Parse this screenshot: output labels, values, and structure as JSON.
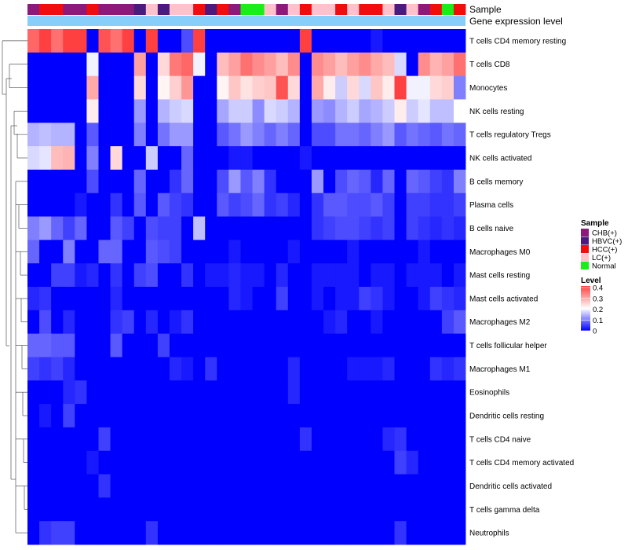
{
  "chart_data": {
    "type": "heatmap",
    "annotation_rows": [
      "Sample",
      "Gene expression level"
    ],
    "rows": [
      "T cells CD4 memory resting",
      "T cells CD8",
      "Monocytes",
      "NK cells resting",
      "T cells regulatory  Tregs",
      "NK cells activated",
      "B cells memory",
      "Plasma cells",
      "B cells naive",
      "Macrophages M0",
      "Mast cells resting",
      "Mast cells activated",
      "Macrophages M2",
      "T cells follicular helper",
      "Macrophages M1",
      "Eosinophils",
      "Dendritic cells resting",
      "T cells CD4 naive",
      "T cells CD4 memory activated",
      "Dendritic cells activated",
      "T cells gamma delta",
      "Neutrophils"
    ],
    "sample_groups": [
      "CHB(+)",
      "HCC(+)",
      "HCC(+)",
      "CHB(+)",
      "CHB(+)",
      "HCC(+)",
      "CHB(+)",
      "CHB(+)",
      "CHB(+)",
      "HBVC(+)",
      "LC(+)",
      "HBVC(+)",
      "LC(+)",
      "LC(+)",
      "HCC(+)",
      "HBVC(+)",
      "HCC(+)",
      "CHB(+)",
      "Normal",
      "Normal",
      "LC(+)",
      "CHB(+)",
      "LC(+)",
      "HCC(+)",
      "LC(+)",
      "LC(+)",
      "HCC(+)",
      "LC(+)",
      "HCC(+)",
      "HCC(+)",
      "LC(+)",
      "HBVC(+)",
      "LC(+)",
      "CHB(+)",
      "HCC(+)",
      "Normal",
      "HCC(+)"
    ],
    "values": [
      [
        0.36,
        0.4,
        0.35,
        0.4,
        0.4,
        0.0,
        0.38,
        0.35,
        0.4,
        0.0,
        0.4,
        0.0,
        0.0,
        0.06,
        0.4,
        0.0,
        0.0,
        0.0,
        0.0,
        0.0,
        0.0,
        0.0,
        0.0,
        0.4,
        0.0,
        0.0,
        0.0,
        0.0,
        0.0,
        0.02,
        0.0,
        0.0,
        0.0,
        0.0,
        0.0,
        0.0,
        0.0
      ],
      [
        0.0,
        0.0,
        0.0,
        0.0,
        0.0,
        0.19,
        0.0,
        0.0,
        0.0,
        0.3,
        0.0,
        0.24,
        0.34,
        0.36,
        0.19,
        0.0,
        0.27,
        0.3,
        0.35,
        0.32,
        0.3,
        0.27,
        0.32,
        0.0,
        0.32,
        0.3,
        0.27,
        0.3,
        0.32,
        0.29,
        0.27,
        0.17,
        0.0,
        0.32,
        0.28,
        0.3,
        0.35
      ],
      [
        0.0,
        0.0,
        0.0,
        0.0,
        0.0,
        0.29,
        0.0,
        0.0,
        0.0,
        0.24,
        0.0,
        0.21,
        0.25,
        0.31,
        0.0,
        0.0,
        0.21,
        0.26,
        0.23,
        0.25,
        0.26,
        0.38,
        0.24,
        0.0,
        0.29,
        0.22,
        0.16,
        0.24,
        0.17,
        0.26,
        0.22,
        0.4,
        0.19,
        0.19,
        0.24,
        0.25,
        0.1
      ],
      [
        0.0,
        0.0,
        0.0,
        0.0,
        0.0,
        0.22,
        0.0,
        0.0,
        0.0,
        0.12,
        0.0,
        0.14,
        0.16,
        0.17,
        0.0,
        0.0,
        0.13,
        0.16,
        0.16,
        0.11,
        0.17,
        0.16,
        0.14,
        0.0,
        0.12,
        0.11,
        0.14,
        0.16,
        0.13,
        0.14,
        0.16,
        0.22,
        0.16,
        0.18,
        0.15,
        0.15,
        0.2
      ],
      [
        0.14,
        0.15,
        0.14,
        0.14,
        0.0,
        0.07,
        0.0,
        0.0,
        0.0,
        0.1,
        0.0,
        0.09,
        0.12,
        0.12,
        0.0,
        0.0,
        0.07,
        0.09,
        0.12,
        0.1,
        0.08,
        0.1,
        0.08,
        0.0,
        0.06,
        0.06,
        0.09,
        0.09,
        0.08,
        0.1,
        0.12,
        0.07,
        0.09,
        0.08,
        0.07,
        0.09,
        0.08
      ],
      [
        0.17,
        0.18,
        0.27,
        0.28,
        0.0,
        0.1,
        0.0,
        0.24,
        0.0,
        0.0,
        0.16,
        0.0,
        0.0,
        0.08,
        0.0,
        0.0,
        0.0,
        0.02,
        0.02,
        0.0,
        0.0,
        0.0,
        0.0,
        0.02,
        0.0,
        0.0,
        0.0,
        0.0,
        0.0,
        0.0,
        0.0,
        0.0,
        0.0,
        0.0,
        0.0,
        0.0,
        0.0
      ],
      [
        0.0,
        0.0,
        0.0,
        0.0,
        0.0,
        0.06,
        0.0,
        0.0,
        0.0,
        0.08,
        0.0,
        0.0,
        0.04,
        0.08,
        0.0,
        0.0,
        0.06,
        0.12,
        0.07,
        0.1,
        0.04,
        0.0,
        0.0,
        0.0,
        0.12,
        0.0,
        0.06,
        0.08,
        0.07,
        0.03,
        0.08,
        0.0,
        0.08,
        0.07,
        0.05,
        0.04,
        0.1
      ],
      [
        0.0,
        0.0,
        0.0,
        0.0,
        0.02,
        0.0,
        0.0,
        0.04,
        0.0,
        0.07,
        0.0,
        0.07,
        0.05,
        0.04,
        0.0,
        0.0,
        0.07,
        0.05,
        0.06,
        0.08,
        0.04,
        0.05,
        0.03,
        0.0,
        0.04,
        0.07,
        0.07,
        0.06,
        0.06,
        0.07,
        0.05,
        0.0,
        0.05,
        0.05,
        0.04,
        0.04,
        0.05
      ],
      [
        0.1,
        0.12,
        0.08,
        0.05,
        0.08,
        0.0,
        0.0,
        0.07,
        0.05,
        0.0,
        0.06,
        0.05,
        0.05,
        0.0,
        0.15,
        0.0,
        0.0,
        0.0,
        0.0,
        0.0,
        0.0,
        0.0,
        0.0,
        0.0,
        0.04,
        0.05,
        0.06,
        0.06,
        0.05,
        0.04,
        0.05,
        0.0,
        0.05,
        0.04,
        0.03,
        0.04,
        0.03
      ],
      [
        0.08,
        0.0,
        0.0,
        0.1,
        0.0,
        0.0,
        0.08,
        0.08,
        0.0,
        0.0,
        0.07,
        0.06,
        0.05,
        0.0,
        0.0,
        0.0,
        0.0,
        0.02,
        0.0,
        0.0,
        0.0,
        0.0,
        0.02,
        0.0,
        0.0,
        0.0,
        0.0,
        0.02,
        0.0,
        0.0,
        0.0,
        0.0,
        0.0,
        0.02,
        0.0,
        0.0,
        0.0
      ],
      [
        0.0,
        0.0,
        0.05,
        0.05,
        0.02,
        0.03,
        0.0,
        0.04,
        0.0,
        0.05,
        0.06,
        0.0,
        0.0,
        0.04,
        0.0,
        0.02,
        0.02,
        0.03,
        0.02,
        0.02,
        0.0,
        0.03,
        0.0,
        0.0,
        0.02,
        0.02,
        0.02,
        0.02,
        0.0,
        0.02,
        0.02,
        0.0,
        0.02,
        0.02,
        0.02,
        0.0,
        0.02
      ],
      [
        0.03,
        0.04,
        0.0,
        0.0,
        0.0,
        0.0,
        0.0,
        0.03,
        0.0,
        0.0,
        0.0,
        0.0,
        0.0,
        0.0,
        0.0,
        0.0,
        0.0,
        0.03,
        0.02,
        0.0,
        0.0,
        0.05,
        0.0,
        0.0,
        0.02,
        0.0,
        0.02,
        0.02,
        0.05,
        0.04,
        0.02,
        0.0,
        0.0,
        0.02,
        0.05,
        0.04,
        0.03
      ],
      [
        0.0,
        0.06,
        0.0,
        0.03,
        0.0,
        0.0,
        0.0,
        0.04,
        0.05,
        0.0,
        0.03,
        0.0,
        0.02,
        0.04,
        0.0,
        0.0,
        0.0,
        0.0,
        0.0,
        0.0,
        0.0,
        0.0,
        0.0,
        0.0,
        0.0,
        0.02,
        0.03,
        0.0,
        0.0,
        0.02,
        0.0,
        0.0,
        0.0,
        0.0,
        0.0,
        0.05,
        0.07
      ],
      [
        0.08,
        0.08,
        0.07,
        0.07,
        0.0,
        0.0,
        0.0,
        0.07,
        0.0,
        0.0,
        0.0,
        0.05,
        0.0,
        0.0,
        0.0,
        0.0,
        0.0,
        0.0,
        0.0,
        0.0,
        0.0,
        0.0,
        0.0,
        0.0,
        0.0,
        0.0,
        0.0,
        0.0,
        0.0,
        0.0,
        0.0,
        0.0,
        0.0,
        0.0,
        0.0,
        0.0,
        0.0
      ],
      [
        0.05,
        0.04,
        0.05,
        0.03,
        0.0,
        0.0,
        0.0,
        0.0,
        0.0,
        0.0,
        0.0,
        0.0,
        0.03,
        0.02,
        0.0,
        0.04,
        0.0,
        0.0,
        0.0,
        0.0,
        0.0,
        0.0,
        0.03,
        0.0,
        0.0,
        0.0,
        0.0,
        0.02,
        0.02,
        0.02,
        0.03,
        0.0,
        0.0,
        0.0,
        0.04,
        0.03,
        0.04
      ],
      [
        0.0,
        0.0,
        0.0,
        0.03,
        0.04,
        0.0,
        0.0,
        0.0,
        0.0,
        0.0,
        0.0,
        0.0,
        0.0,
        0.0,
        0.0,
        0.0,
        0.0,
        0.0,
        0.0,
        0.0,
        0.0,
        0.0,
        0.03,
        0.0,
        0.0,
        0.0,
        0.0,
        0.0,
        0.0,
        0.0,
        0.0,
        0.0,
        0.0,
        0.0,
        0.0,
        0.0,
        0.0
      ],
      [
        0.0,
        0.02,
        0.0,
        0.05,
        0.0,
        0.0,
        0.0,
        0.0,
        0.0,
        0.0,
        0.0,
        0.0,
        0.0,
        0.0,
        0.0,
        0.0,
        0.0,
        0.0,
        0.0,
        0.0,
        0.0,
        0.0,
        0.0,
        0.0,
        0.0,
        0.0,
        0.0,
        0.0,
        0.0,
        0.0,
        0.0,
        0.0,
        0.0,
        0.0,
        0.0,
        0.0,
        0.0
      ],
      [
        0.0,
        0.0,
        0.0,
        0.0,
        0.0,
        0.0,
        0.05,
        0.0,
        0.0,
        0.0,
        0.0,
        0.0,
        0.0,
        0.0,
        0.0,
        0.0,
        0.0,
        0.0,
        0.0,
        0.0,
        0.0,
        0.0,
        0.0,
        0.04,
        0.0,
        0.0,
        0.0,
        0.0,
        0.0,
        0.0,
        0.03,
        0.04,
        0.0,
        0.0,
        0.0,
        0.0,
        0.0
      ],
      [
        0.0,
        0.0,
        0.0,
        0.0,
        0.0,
        0.02,
        0.0,
        0.0,
        0.0,
        0.0,
        0.0,
        0.0,
        0.0,
        0.0,
        0.0,
        0.0,
        0.0,
        0.0,
        0.0,
        0.0,
        0.0,
        0.0,
        0.0,
        0.0,
        0.0,
        0.0,
        0.0,
        0.0,
        0.0,
        0.0,
        0.0,
        0.05,
        0.03,
        0.0,
        0.0,
        0.0,
        0.0
      ],
      [
        0.0,
        0.0,
        0.0,
        0.0,
        0.0,
        0.0,
        0.04,
        0.0,
        0.0,
        0.0,
        0.0,
        0.0,
        0.0,
        0.0,
        0.0,
        0.0,
        0.0,
        0.0,
        0.0,
        0.0,
        0.0,
        0.0,
        0.0,
        0.0,
        0.0,
        0.0,
        0.0,
        0.0,
        0.0,
        0.0,
        0.0,
        0.0,
        0.0,
        0.0,
        0.0,
        0.0,
        0.0
      ],
      [
        0.0,
        0.0,
        0.0,
        0.0,
        0.0,
        0.0,
        0.0,
        0.0,
        0.0,
        0.0,
        0.0,
        0.0,
        0.0,
        0.0,
        0.0,
        0.0,
        0.0,
        0.0,
        0.0,
        0.0,
        0.0,
        0.0,
        0.0,
        0.0,
        0.0,
        0.0,
        0.0,
        0.0,
        0.0,
        0.0,
        0.0,
        0.0,
        0.0,
        0.0,
        0.0,
        0.0,
        0.0
      ],
      [
        0.0,
        0.04,
        0.05,
        0.05,
        0.0,
        0.0,
        0.0,
        0.0,
        0.0,
        0.0,
        0.04,
        0.0,
        0.0,
        0.0,
        0.0,
        0.0,
        0.0,
        0.0,
        0.0,
        0.0,
        0.0,
        0.0,
        0.0,
        0.0,
        0.0,
        0.0,
        0.0,
        0.0,
        0.0,
        0.0,
        0.0,
        0.04,
        0.0,
        0.0,
        0.0,
        0.0,
        0.0
      ]
    ],
    "legend": {
      "sample_title": "Sample",
      "sample_entries": [
        {
          "label": "CHB(+)",
          "color": "#8b1a7a"
        },
        {
          "label": "HBVC(+)",
          "color": "#4b1a7f"
        },
        {
          "label": "HCC(+)",
          "color": "#f20d0d"
        },
        {
          "label": "LC(+)",
          "color": "#ffc1cc"
        },
        {
          "label": "Normal",
          "color": "#19ee19"
        }
      ],
      "level_title": "Level",
      "level_ticks": [
        {
          "label": "0.4",
          "value": 0.4
        },
        {
          "label": "0.3",
          "value": 0.3
        },
        {
          "label": "0.2",
          "value": 0.2
        },
        {
          "label": "0.1",
          "value": 0.1
        },
        {
          "label": "0",
          "value": 0
        }
      ],
      "scale": {
        "low": "#0000ff",
        "mid": "#ffffff",
        "high": "#ff4040",
        "min": 0,
        "mid_value": 0.2,
        "max": 0.4
      }
    },
    "expression_bar_color": "#87cefa",
    "dendrogram": true
  }
}
